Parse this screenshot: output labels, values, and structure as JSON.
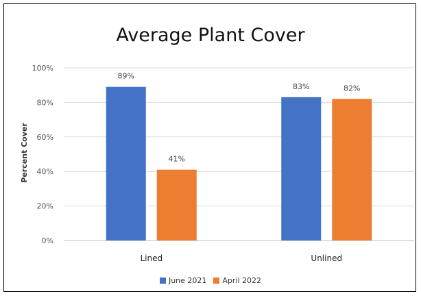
{
  "chart_data": {
    "type": "bar",
    "title": "Average Plant Cover",
    "xlabel": "",
    "ylabel": "Percent Cover",
    "categories": [
      "Lined",
      "Unlined"
    ],
    "series": [
      {
        "name": "June 2021",
        "values": [
          89,
          83
        ],
        "labels": [
          "89%",
          "83%"
        ],
        "color": "#4472C4"
      },
      {
        "name": "April 2022",
        "values": [
          41,
          82
        ],
        "labels": [
          "41%",
          "82%"
        ],
        "color": "#ED7D31"
      }
    ],
    "ylim": [
      0,
      100
    ],
    "yticks": [
      0,
      20,
      40,
      60,
      80,
      100
    ],
    "ytick_labels": [
      "0%",
      "20%",
      "40%",
      "60%",
      "80%",
      "100%"
    ],
    "grid": true,
    "legend_position": "bottom"
  }
}
